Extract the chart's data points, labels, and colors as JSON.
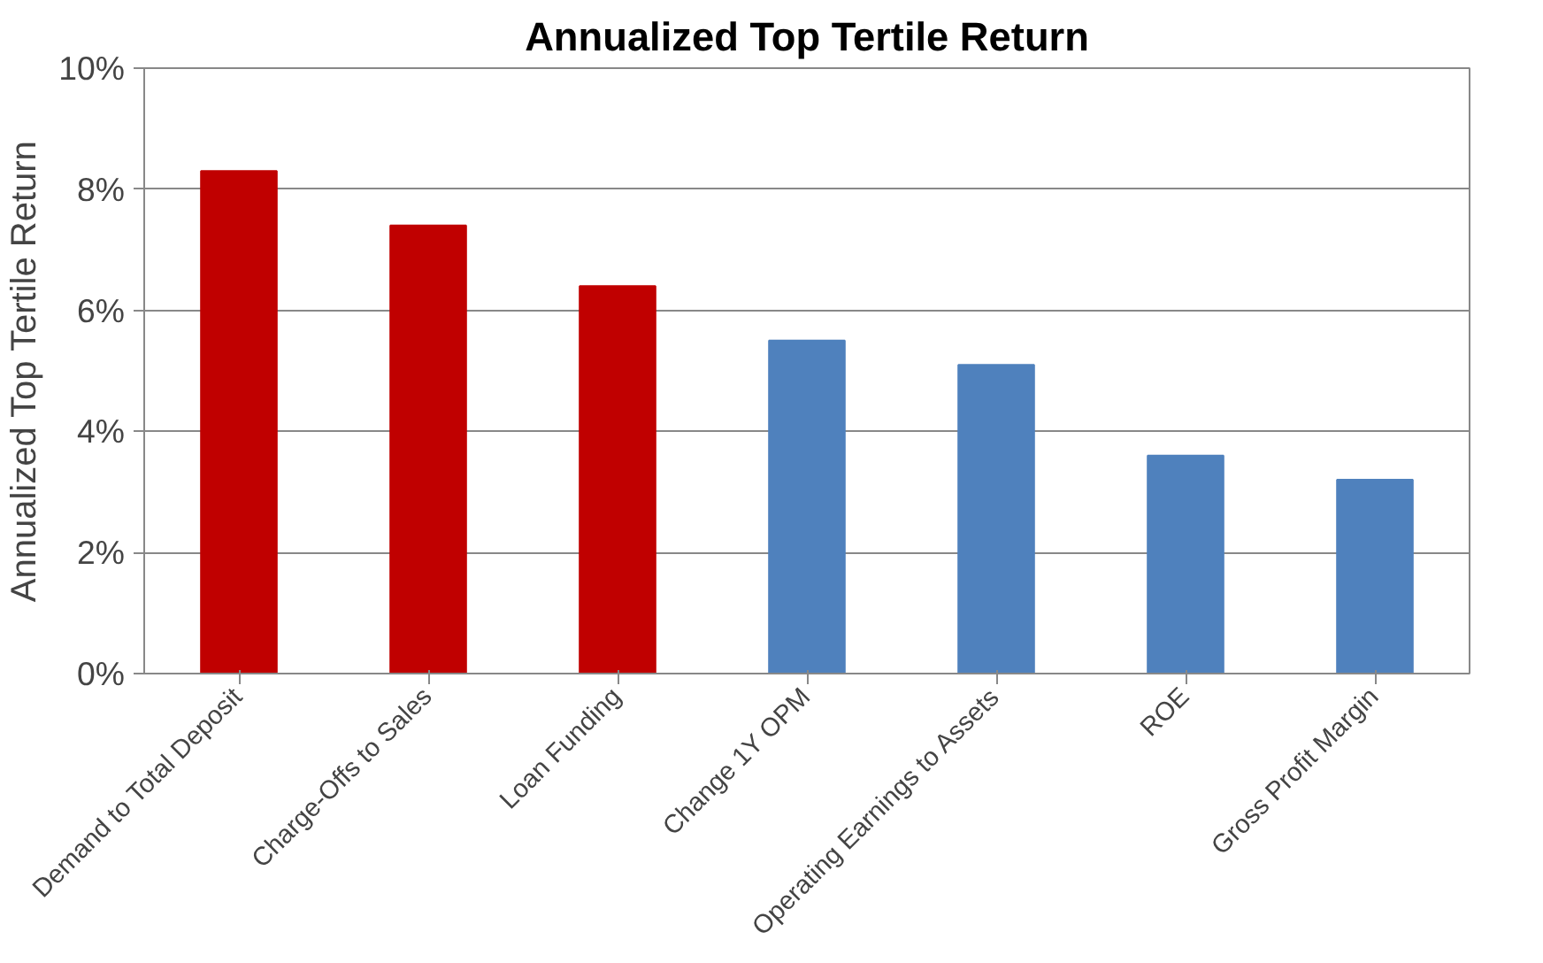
{
  "chart_data": {
    "type": "bar",
    "title": "Annualized Top Tertile Return",
    "ylabel": "Annualized Top Tertile Return",
    "categories": [
      "Demand to Total Deposit",
      "Charge-Offs to Sales",
      "Loan Funding",
      "Change 1Y OPM",
      "Operating Earnings to Assets",
      "ROE",
      "Gross Profit Margin"
    ],
    "values": [
      8.3,
      7.4,
      6.4,
      5.5,
      5.1,
      3.6,
      3.2
    ],
    "colors": [
      "#c00000",
      "#c00000",
      "#c00000",
      "#4f81bd",
      "#4f81bd",
      "#4f81bd",
      "#4f81bd"
    ],
    "ylim": [
      0,
      10
    ],
    "yticks": [
      {
        "value": 0,
        "label": "0%"
      },
      {
        "value": 2,
        "label": "2%"
      },
      {
        "value": 4,
        "label": "4%"
      },
      {
        "value": 6,
        "label": "6%"
      },
      {
        "value": 8,
        "label": "8%"
      },
      {
        "value": 10,
        "label": "10%"
      }
    ],
    "grid": "y"
  }
}
